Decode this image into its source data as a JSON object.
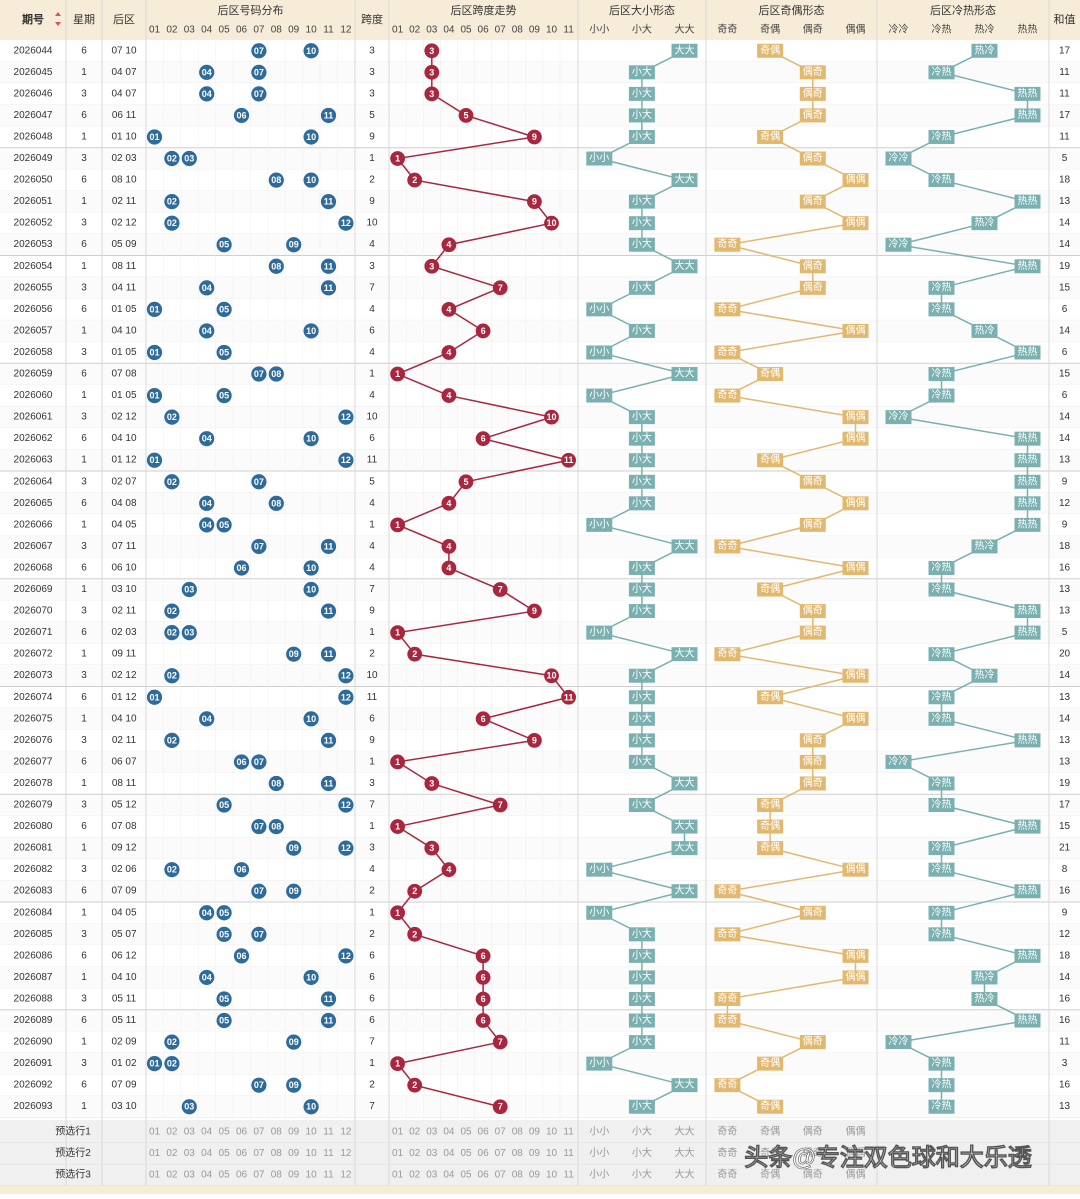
{
  "header": {
    "period": "期号",
    "week": "星期",
    "back": "后区",
    "dist_title": "后区号码分布",
    "span": "跨度",
    "span_title": "后区跨度走势",
    "size_title": "后区大小形态",
    "oe_title": "后区奇偶形态",
    "ch_title": "后区冷热形态",
    "sum": "和值",
    "nums": [
      "01",
      "02",
      "03",
      "04",
      "05",
      "06",
      "07",
      "08",
      "09",
      "10",
      "11",
      "12"
    ],
    "span_nums": [
      "01",
      "02",
      "03",
      "04",
      "05",
      "06",
      "07",
      "08",
      "09",
      "10",
      "11"
    ],
    "size_sub": [
      "小小",
      "小大",
      "大大"
    ],
    "oe_sub": [
      "奇奇",
      "奇偶",
      "偶奇",
      "偶偶"
    ],
    "ch_sub": [
      "冷冷",
      "冷热",
      "热冷",
      "热热"
    ]
  },
  "chart_data": {
    "type": "table",
    "rows": [
      {
        "p": "2026044",
        "w": "6",
        "a": 7,
        "b": 10,
        "span": 3,
        "size": "大大",
        "oe": "奇偶",
        "ch": "热冷",
        "sum": 17
      },
      {
        "p": "2026045",
        "w": "1",
        "a": 4,
        "b": 7,
        "span": 3,
        "size": "小大",
        "oe": "偶奇",
        "ch": "冷热",
        "sum": 11
      },
      {
        "p": "2026046",
        "w": "3",
        "a": 4,
        "b": 7,
        "span": 3,
        "size": "小大",
        "oe": "偶奇",
        "ch": "热热",
        "sum": 11
      },
      {
        "p": "2026047",
        "w": "6",
        "a": 6,
        "b": 11,
        "span": 5,
        "size": "小大",
        "oe": "偶奇",
        "ch": "热热",
        "sum": 17
      },
      {
        "p": "2026048",
        "w": "1",
        "a": 1,
        "b": 10,
        "span": 9,
        "size": "小大",
        "oe": "奇偶",
        "ch": "冷热",
        "sum": 11
      },
      {
        "p": "2026049",
        "w": "3",
        "a": 2,
        "b": 3,
        "span": 1,
        "size": "小小",
        "oe": "偶奇",
        "ch": "冷冷",
        "sum": 5
      },
      {
        "p": "2026050",
        "w": "6",
        "a": 8,
        "b": 10,
        "span": 2,
        "size": "大大",
        "oe": "偶偶",
        "ch": "冷热",
        "sum": 18
      },
      {
        "p": "2026051",
        "w": "1",
        "a": 2,
        "b": 11,
        "span": 9,
        "size": "小大",
        "oe": "偶奇",
        "ch": "热热",
        "sum": 13
      },
      {
        "p": "2026052",
        "w": "3",
        "a": 2,
        "b": 12,
        "span": 10,
        "size": "小大",
        "oe": "偶偶",
        "ch": "热冷",
        "sum": 14
      },
      {
        "p": "2026053",
        "w": "6",
        "a": 5,
        "b": 9,
        "span": 4,
        "size": "小大",
        "oe": "奇奇",
        "ch": "冷冷",
        "sum": 14
      },
      {
        "p": "2026054",
        "w": "1",
        "a": 8,
        "b": 11,
        "span": 3,
        "size": "大大",
        "oe": "偶奇",
        "ch": "热热",
        "sum": 19
      },
      {
        "p": "2026055",
        "w": "3",
        "a": 4,
        "b": 11,
        "span": 7,
        "size": "小大",
        "oe": "偶奇",
        "ch": "冷热",
        "sum": 15
      },
      {
        "p": "2026056",
        "w": "6",
        "a": 1,
        "b": 5,
        "span": 4,
        "size": "小小",
        "oe": "奇奇",
        "ch": "冷热",
        "sum": 6
      },
      {
        "p": "2026057",
        "w": "1",
        "a": 4,
        "b": 10,
        "span": 6,
        "size": "小大",
        "oe": "偶偶",
        "ch": "热冷",
        "sum": 14
      },
      {
        "p": "2026058",
        "w": "3",
        "a": 1,
        "b": 5,
        "span": 4,
        "size": "小小",
        "oe": "奇奇",
        "ch": "热热",
        "sum": 6
      },
      {
        "p": "2026059",
        "w": "6",
        "a": 7,
        "b": 8,
        "span": 1,
        "size": "大大",
        "oe": "奇偶",
        "ch": "冷热",
        "sum": 15
      },
      {
        "p": "2026060",
        "w": "1",
        "a": 1,
        "b": 5,
        "span": 4,
        "size": "小小",
        "oe": "奇奇",
        "ch": "冷热",
        "sum": 6
      },
      {
        "p": "2026061",
        "w": "3",
        "a": 2,
        "b": 12,
        "span": 10,
        "size": "小大",
        "oe": "偶偶",
        "ch": "冷冷",
        "sum": 14
      },
      {
        "p": "2026062",
        "w": "6",
        "a": 4,
        "b": 10,
        "span": 6,
        "size": "小大",
        "oe": "偶偶",
        "ch": "热热",
        "sum": 14
      },
      {
        "p": "2026063",
        "w": "1",
        "a": 1,
        "b": 12,
        "span": 11,
        "size": "小大",
        "oe": "奇偶",
        "ch": "热热",
        "sum": 13
      },
      {
        "p": "2026064",
        "w": "3",
        "a": 2,
        "b": 7,
        "span": 5,
        "size": "小大",
        "oe": "偶奇",
        "ch": "热热",
        "sum": 9
      },
      {
        "p": "2026065",
        "w": "6",
        "a": 4,
        "b": 8,
        "span": 4,
        "size": "小大",
        "oe": "偶偶",
        "ch": "热热",
        "sum": 12
      },
      {
        "p": "2026066",
        "w": "1",
        "a": 4,
        "b": 5,
        "span": 1,
        "size": "小小",
        "oe": "偶奇",
        "ch": "热热",
        "sum": 9
      },
      {
        "p": "2026067",
        "w": "3",
        "a": 7,
        "b": 11,
        "span": 4,
        "size": "大大",
        "oe": "奇奇",
        "ch": "热冷",
        "sum": 18
      },
      {
        "p": "2026068",
        "w": "6",
        "a": 6,
        "b": 10,
        "span": 4,
        "size": "小大",
        "oe": "偶偶",
        "ch": "冷热",
        "sum": 16
      },
      {
        "p": "2026069",
        "w": "1",
        "a": 3,
        "b": 10,
        "span": 7,
        "size": "小大",
        "oe": "奇偶",
        "ch": "冷热",
        "sum": 13
      },
      {
        "p": "2026070",
        "w": "3",
        "a": 2,
        "b": 11,
        "span": 9,
        "size": "小大",
        "oe": "偶奇",
        "ch": "热热",
        "sum": 13
      },
      {
        "p": "2026071",
        "w": "6",
        "a": 2,
        "b": 3,
        "span": 1,
        "size": "小小",
        "oe": "偶奇",
        "ch": "热热",
        "sum": 5
      },
      {
        "p": "2026072",
        "w": "1",
        "a": 9,
        "b": 11,
        "span": 2,
        "size": "大大",
        "oe": "奇奇",
        "ch": "冷热",
        "sum": 20
      },
      {
        "p": "2026073",
        "w": "3",
        "a": 2,
        "b": 12,
        "span": 10,
        "size": "小大",
        "oe": "偶偶",
        "ch": "热冷",
        "sum": 14
      },
      {
        "p": "2026074",
        "w": "6",
        "a": 1,
        "b": 12,
        "span": 11,
        "size": "小大",
        "oe": "奇偶",
        "ch": "冷热",
        "sum": 13
      },
      {
        "p": "2026075",
        "w": "1",
        "a": 4,
        "b": 10,
        "span": 6,
        "size": "小大",
        "oe": "偶偶",
        "ch": "冷热",
        "sum": 14
      },
      {
        "p": "2026076",
        "w": "3",
        "a": 2,
        "b": 11,
        "span": 9,
        "size": "小大",
        "oe": "偶奇",
        "ch": "热热",
        "sum": 13
      },
      {
        "p": "2026077",
        "w": "6",
        "a": 6,
        "b": 7,
        "span": 1,
        "size": "小大",
        "oe": "偶奇",
        "ch": "冷冷",
        "sum": 13
      },
      {
        "p": "2026078",
        "w": "1",
        "a": 8,
        "b": 11,
        "span": 3,
        "size": "大大",
        "oe": "偶奇",
        "ch": "冷热",
        "sum": 19
      },
      {
        "p": "2026079",
        "w": "3",
        "a": 5,
        "b": 12,
        "span": 7,
        "size": "小大",
        "oe": "奇偶",
        "ch": "冷热",
        "sum": 17
      },
      {
        "p": "2026080",
        "w": "6",
        "a": 7,
        "b": 8,
        "span": 1,
        "size": "大大",
        "oe": "奇偶",
        "ch": "热热",
        "sum": 15
      },
      {
        "p": "2026081",
        "w": "1",
        "a": 9,
        "b": 12,
        "span": 3,
        "size": "大大",
        "oe": "奇偶",
        "ch": "冷热",
        "sum": 21
      },
      {
        "p": "2026082",
        "w": "3",
        "a": 2,
        "b": 6,
        "span": 4,
        "size": "小小",
        "oe": "偶偶",
        "ch": "冷热",
        "sum": 8
      },
      {
        "p": "2026083",
        "w": "6",
        "a": 7,
        "b": 9,
        "span": 2,
        "size": "大大",
        "oe": "奇奇",
        "ch": "热热",
        "sum": 16
      },
      {
        "p": "2026084",
        "w": "1",
        "a": 4,
        "b": 5,
        "span": 1,
        "size": "小小",
        "oe": "偶奇",
        "ch": "冷热",
        "sum": 9
      },
      {
        "p": "2026085",
        "w": "3",
        "a": 5,
        "b": 7,
        "span": 2,
        "size": "小大",
        "oe": "奇奇",
        "ch": "冷热",
        "sum": 12
      },
      {
        "p": "2026086",
        "w": "6",
        "a": 6,
        "b": 12,
        "span": 6,
        "size": "小大",
        "oe": "偶偶",
        "ch": "热热",
        "sum": 18
      },
      {
        "p": "2026087",
        "w": "1",
        "a": 4,
        "b": 10,
        "span": 6,
        "size": "小大",
        "oe": "偶偶",
        "ch": "热冷",
        "sum": 14
      },
      {
        "p": "2026088",
        "w": "3",
        "a": 5,
        "b": 11,
        "span": 6,
        "size": "小大",
        "oe": "奇奇",
        "ch": "热冷",
        "sum": 16
      },
      {
        "p": "2026089",
        "w": "6",
        "a": 5,
        "b": 11,
        "span": 6,
        "size": "小大",
        "oe": "奇奇",
        "ch": "热热",
        "sum": 16
      },
      {
        "p": "2026090",
        "w": "1",
        "a": 2,
        "b": 9,
        "span": 7,
        "size": "小大",
        "oe": "偶奇",
        "ch": "冷冷",
        "sum": 11
      },
      {
        "p": "2026091",
        "w": "3",
        "a": 1,
        "b": 2,
        "span": 1,
        "size": "小小",
        "oe": "奇偶",
        "ch": "冷热",
        "sum": 3
      },
      {
        "p": "2026092",
        "w": "6",
        "a": 7,
        "b": 9,
        "span": 2,
        "size": "大大",
        "oe": "奇奇",
        "ch": "冷热",
        "sum": 16
      },
      {
        "p": "2026093",
        "w": "1",
        "a": 3,
        "b": 10,
        "span": 7,
        "size": "小大",
        "oe": "奇偶",
        "ch": "冷热",
        "sum": 13
      }
    ]
  },
  "footer": {
    "labels": [
      "预选行1",
      "预选行2",
      "预选行3"
    ]
  },
  "watermark": "头条@专注双色球和大乐透",
  "colors": {
    "blue_ball": "#2e6b9a",
    "red_ball": "#a8273f",
    "size_tag": "#7bb0b1",
    "oe_tag": "#e2b86f",
    "ch_tag": "#7bb0b1",
    "header_bg": "#f6ecd8",
    "grid": "#e6e6e6"
  }
}
